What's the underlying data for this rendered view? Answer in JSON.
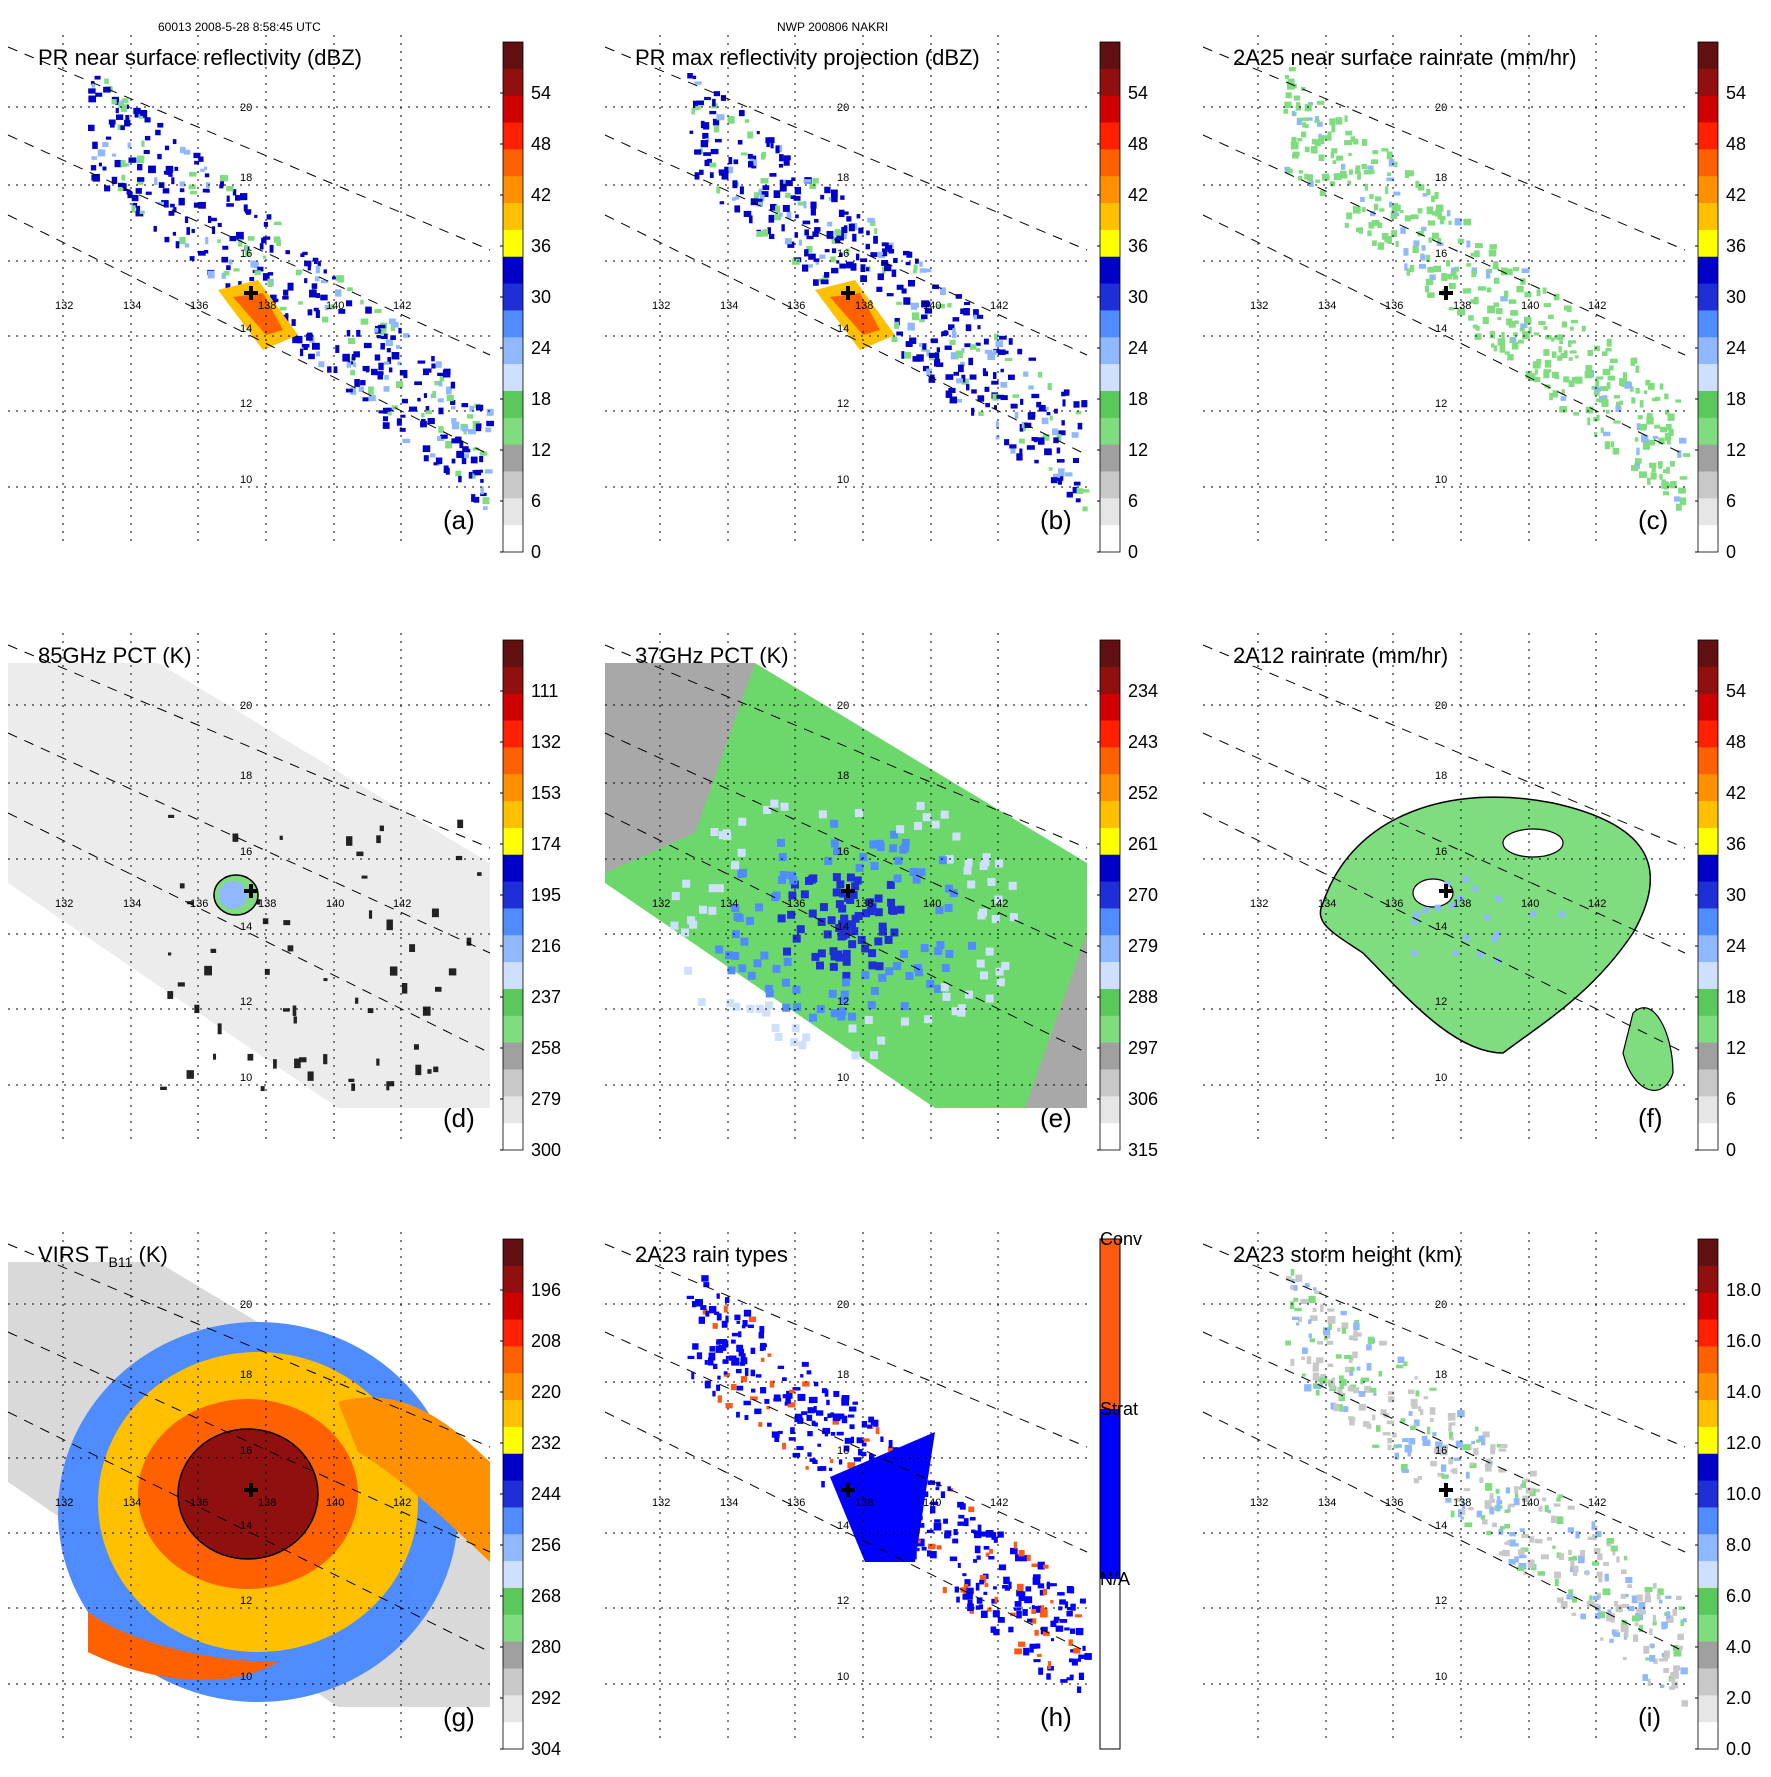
{
  "header": {
    "left": "60013 2008-5-28 8:58:45 UTC",
    "center": "NWP 200806 NAKRI"
  },
  "lon_ticks": [
    "132",
    "134",
    "136",
    "138",
    "140",
    "142"
  ],
  "lat_ticks": [
    "20",
    "18",
    "16",
    "14",
    "12",
    "10"
  ],
  "panels": [
    {
      "id": "a",
      "title": "PR near surface reflectivity (dBZ)",
      "label": "(a)",
      "colorbar": [
        "54",
        "48",
        "42",
        "36",
        "30",
        "24",
        "18",
        "12",
        "6",
        "0"
      ],
      "fill": "pr"
    },
    {
      "id": "b",
      "title": "PR max reflectivity projection (dBZ)",
      "label": "(b)",
      "colorbar": [
        "54",
        "48",
        "42",
        "36",
        "30",
        "24",
        "18",
        "12",
        "6",
        "0"
      ],
      "fill": "pr"
    },
    {
      "id": "c",
      "title": "2A25 near surface rainrate (mm/hr)",
      "label": "(c)",
      "colorbar": [
        "54",
        "48",
        "42",
        "36",
        "30",
        "24",
        "18",
        "12",
        "6",
        "0"
      ],
      "fill": "pr"
    },
    {
      "id": "d",
      "title": "85GHz PCT (K)",
      "label": "(d)",
      "colorbar": [
        "111",
        "132",
        "153",
        "174",
        "195",
        "216",
        "237",
        "258",
        "279",
        "300"
      ],
      "fill": "wide"
    },
    {
      "id": "e",
      "title": "37GHz PCT (K)",
      "label": "(e)",
      "colorbar": [
        "234",
        "243",
        "252",
        "261",
        "270",
        "279",
        "288",
        "297",
        "306",
        "315"
      ],
      "fill": "wide"
    },
    {
      "id": "f",
      "title": "2A12 rainrate (mm/hr)",
      "label": "(f)",
      "colorbar": [
        "54",
        "48",
        "42",
        "36",
        "30",
        "24",
        "18",
        "12",
        "6",
        "0"
      ],
      "fill": "wide"
    },
    {
      "id": "g",
      "title": "VIRS T",
      "title_sub": "B11",
      "title_suffix": " (K)",
      "label": "(g)",
      "colorbar": [
        "196",
        "208",
        "220",
        "232",
        "244",
        "256",
        "268",
        "280",
        "292",
        "304"
      ],
      "fill": "wide"
    },
    {
      "id": "h",
      "title": "2A23 rain types",
      "label": "(h)",
      "colorbar": [
        "Conv",
        "Strat",
        "N/A"
      ],
      "fill": "pr"
    },
    {
      "id": "i",
      "title": "2A23 storm height (km)",
      "label": "(i)",
      "colorbar": [
        "18.0",
        "16.0",
        "14.0",
        "12.0",
        "10.0",
        "8.0",
        "6.0",
        "4.0",
        "2.0",
        "0.0"
      ],
      "fill": "pr"
    }
  ],
  "colors": {
    "scale": [
      "#ffffff",
      "#e6e6e6",
      "#c8c8c8",
      "#a0a0a0",
      "#7fdc7f",
      "#5bc85b",
      "#cfe0ff",
      "#8fb8ff",
      "#4f8cff",
      "#1f2fd8",
      "#0000c8",
      "#ffff00",
      "#ffc000",
      "#ff9000",
      "#ff6000",
      "#ff2000",
      "#d00000",
      "#901010",
      "#601010"
    ],
    "raintype": [
      "#ffffff",
      "#0000ff",
      "#ff5a14"
    ],
    "storm_center": "#000000"
  }
}
